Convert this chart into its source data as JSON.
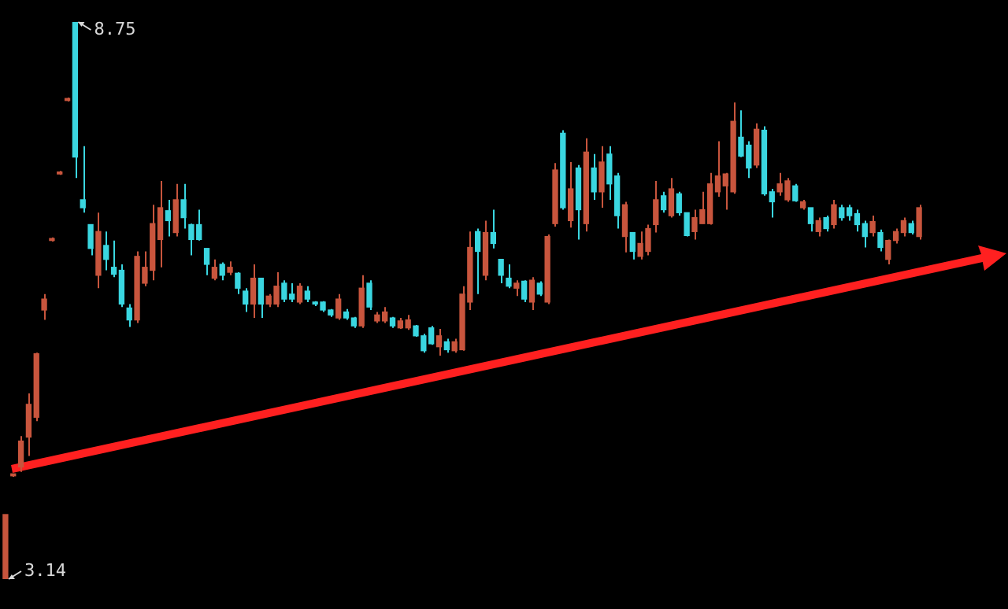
{
  "chart_data": {
    "type": "candlestick",
    "categories": [
      null,
      null,
      null,
      null,
      null,
      null,
      null,
      null,
      null,
      null,
      null,
      null,
      null,
      null,
      null,
      null,
      null,
      null,
      null,
      null,
      null,
      null,
      null,
      null,
      null,
      null,
      null,
      null,
      null,
      null,
      null,
      null,
      null,
      null,
      null,
      null,
      null,
      null,
      null,
      null,
      null,
      null,
      null,
      null,
      null,
      null,
      null,
      null,
      null,
      null,
      null,
      null,
      null,
      null,
      null,
      null,
      null,
      null,
      null,
      null,
      null,
      null,
      null,
      null,
      null,
      null,
      null,
      null,
      null,
      null,
      null,
      null,
      null,
      null,
      null,
      null,
      null,
      null,
      null,
      null,
      null,
      null,
      null,
      null,
      null,
      null,
      null,
      null,
      null,
      null,
      null,
      null,
      null,
      null,
      null,
      null,
      null,
      null,
      null,
      null,
      null,
      null,
      null,
      null,
      null,
      null,
      null,
      null,
      null,
      null,
      null,
      null,
      null,
      null,
      null,
      null,
      null,
      null,
      null
    ],
    "ohlc": [
      [
        3.14,
        3.79,
        3.14,
        3.79
      ],
      [
        4.18,
        4.2,
        4.17,
        4.2
      ],
      [
        4.27,
        4.58,
        4.22,
        4.53
      ],
      [
        4.57,
        5.01,
        4.38,
        4.9
      ],
      [
        4.77,
        5.42,
        4.73,
        5.41
      ],
      [
        5.85,
        6.01,
        5.75,
        5.96
      ],
      [
        6.55,
        6.58,
        6.54,
        6.57
      ],
      [
        7.22,
        7.25,
        7.21,
        7.24
      ],
      [
        7.96,
        7.99,
        7.95,
        7.98
      ],
      [
        8.75,
        8.75,
        7.18,
        7.39
      ],
      [
        6.96,
        7.5,
        6.83,
        6.88
      ],
      [
        6.71,
        6.71,
        6.4,
        6.47
      ],
      [
        6.2,
        6.83,
        6.07,
        6.64
      ],
      [
        6.5,
        6.64,
        6.25,
        6.36
      ],
      [
        6.28,
        6.55,
        6.18,
        6.21
      ],
      [
        6.25,
        6.31,
        5.88,
        5.91
      ],
      [
        5.87,
        5.91,
        5.68,
        5.75
      ],
      [
        5.75,
        6.44,
        5.72,
        6.39
      ],
      [
        6.12,
        6.44,
        6.09,
        6.28
      ],
      [
        6.25,
        6.91,
        6.15,
        6.72
      ],
      [
        6.56,
        7.15,
        6.28,
        6.88
      ],
      [
        6.85,
        6.96,
        6.59,
        6.75
      ],
      [
        6.63,
        7.12,
        6.59,
        6.96
      ],
      [
        6.96,
        7.12,
        6.67,
        6.78
      ],
      [
        6.71,
        6.72,
        6.4,
        6.56
      ],
      [
        6.71,
        6.86,
        6.55,
        6.56
      ],
      [
        6.47,
        6.47,
        6.2,
        6.31
      ],
      [
        6.17,
        6.36,
        6.15,
        6.28
      ],
      [
        6.31,
        6.33,
        6.15,
        6.2
      ],
      [
        6.23,
        6.34,
        6.2,
        6.28
      ],
      [
        6.22,
        6.23,
        6.01,
        6.07
      ],
      [
        6.04,
        6.07,
        5.83,
        5.91
      ],
      [
        5.91,
        6.31,
        5.77,
        6.17
      ],
      [
        6.17,
        6.17,
        5.77,
        5.91
      ],
      [
        5.91,
        6.01,
        5.88,
        5.99
      ],
      [
        5.91,
        6.23,
        5.88,
        6.09
      ],
      [
        6.12,
        6.15,
        5.93,
        5.96
      ],
      [
        6.01,
        6.12,
        5.93,
        5.96
      ],
      [
        5.93,
        6.12,
        5.91,
        6.09
      ],
      [
        6.04,
        6.09,
        5.93,
        5.96
      ],
      [
        5.93,
        5.94,
        5.89,
        5.91
      ],
      [
        5.93,
        5.94,
        5.83,
        5.85
      ],
      [
        5.85,
        5.86,
        5.78,
        5.8
      ],
      [
        5.77,
        6.01,
        5.75,
        5.96
      ],
      [
        5.83,
        5.86,
        5.75,
        5.77
      ],
      [
        5.77,
        5.78,
        5.67,
        5.69
      ],
      [
        5.69,
        6.2,
        5.67,
        6.07
      ],
      [
        6.12,
        6.15,
        5.85,
        5.88
      ],
      [
        5.74,
        5.83,
        5.72,
        5.8
      ],
      [
        5.74,
        5.88,
        5.72,
        5.83
      ],
      [
        5.77,
        5.78,
        5.67,
        5.69
      ],
      [
        5.67,
        5.77,
        5.66,
        5.74
      ],
      [
        5.67,
        5.8,
        5.65,
        5.75
      ],
      [
        5.69,
        5.7,
        5.58,
        5.59
      ],
      [
        5.59,
        5.61,
        5.42,
        5.44
      ],
      [
        5.67,
        5.69,
        5.5,
        5.51
      ],
      [
        5.48,
        5.66,
        5.39,
        5.59
      ],
      [
        5.53,
        5.56,
        5.42,
        5.45
      ],
      [
        5.44,
        5.56,
        5.42,
        5.53
      ],
      [
        5.45,
        6.09,
        5.44,
        6.01
      ],
      [
        5.93,
        6.64,
        5.85,
        6.48
      ],
      [
        6.64,
        6.67,
        6.01,
        6.44
      ],
      [
        6.2,
        6.75,
        6.15,
        6.63
      ],
      [
        6.63,
        6.86,
        6.47,
        6.52
      ],
      [
        6.36,
        6.36,
        6.12,
        6.2
      ],
      [
        6.17,
        6.31,
        6.07,
        6.09
      ],
      [
        6.07,
        6.15,
        5.99,
        6.12
      ],
      [
        6.14,
        6.15,
        5.93,
        5.96
      ],
      [
        5.93,
        6.18,
        5.85,
        6.15
      ],
      [
        6.12,
        6.14,
        5.99,
        6.01
      ],
      [
        5.93,
        6.61,
        5.91,
        6.59
      ],
      [
        6.72,
        7.33,
        6.69,
        7.26
      ],
      [
        7.63,
        7.66,
        6.86,
        6.88
      ],
      [
        6.75,
        7.34,
        6.68,
        7.07
      ],
      [
        7.28,
        7.31,
        6.56,
        6.86
      ],
      [
        6.72,
        7.58,
        6.64,
        7.44
      ],
      [
        7.28,
        7.42,
        6.96,
        7.04
      ],
      [
        7.04,
        7.5,
        6.88,
        7.34
      ],
      [
        7.42,
        7.5,
        6.96,
        7.12
      ],
      [
        7.2,
        7.23,
        6.67,
        6.8
      ],
      [
        6.59,
        6.94,
        6.43,
        6.91
      ],
      [
        6.63,
        6.63,
        6.36,
        6.44
      ],
      [
        6.39,
        6.64,
        6.36,
        6.52
      ],
      [
        6.44,
        6.71,
        6.4,
        6.67
      ],
      [
        6.71,
        7.15,
        6.63,
        6.96
      ],
      [
        7.0,
        7.04,
        6.83,
        6.86
      ],
      [
        6.8,
        7.18,
        6.78,
        7.07
      ],
      [
        7.02,
        7.04,
        6.8,
        6.83
      ],
      [
        6.83,
        6.83,
        6.59,
        6.6
      ],
      [
        6.64,
        6.86,
        6.56,
        6.78
      ],
      [
        6.72,
        7.04,
        6.72,
        6.86
      ],
      [
        6.72,
        7.23,
        6.71,
        7.12
      ],
      [
        7.04,
        7.55,
        6.99,
        7.2
      ],
      [
        7.1,
        7.23,
        6.86,
        7.22
      ],
      [
        7.04,
        7.94,
        7.02,
        7.75
      ],
      [
        7.59,
        7.86,
        7.39,
        7.4
      ],
      [
        7.51,
        7.55,
        7.18,
        7.28
      ],
      [
        7.31,
        7.73,
        7.28,
        7.67
      ],
      [
        7.66,
        7.7,
        7.0,
        7.02
      ],
      [
        7.04,
        7.07,
        6.78,
        6.94
      ],
      [
        7.04,
        7.23,
        7.0,
        7.12
      ],
      [
        6.96,
        7.18,
        6.94,
        7.15
      ],
      [
        7.1,
        7.12,
        6.94,
        6.95
      ],
      [
        6.88,
        6.96,
        6.86,
        6.94
      ],
      [
        6.88,
        6.88,
        6.64,
        6.72
      ],
      [
        6.64,
        6.78,
        6.59,
        6.75
      ],
      [
        6.78,
        6.8,
        6.64,
        6.67
      ],
      [
        6.71,
        6.96,
        6.67,
        6.91
      ],
      [
        6.88,
        6.91,
        6.75,
        6.78
      ],
      [
        6.88,
        6.91,
        6.75,
        6.8
      ],
      [
        6.82,
        6.86,
        6.64,
        6.71
      ],
      [
        6.72,
        6.75,
        6.48,
        6.59
      ],
      [
        6.63,
        6.8,
        6.59,
        6.74
      ],
      [
        6.63,
        6.66,
        6.44,
        6.48
      ],
      [
        6.36,
        6.56,
        6.31,
        6.55
      ],
      [
        6.55,
        6.67,
        6.52,
        6.64
      ],
      [
        6.63,
        6.78,
        6.59,
        6.75
      ],
      [
        6.72,
        6.75,
        6.61,
        6.63
      ],
      [
        6.59,
        6.91,
        6.56,
        6.88
      ]
    ],
    "colors": [
      "#c8553d",
      "#c8553d",
      "#c8553d",
      "#c8553d",
      "#c8553d",
      "#c8553d",
      "#c8553d",
      "#c8553d",
      "#c8553d",
      "#3ad6e0",
      "#3ad6e0",
      "#3ad6e0",
      "#c8553d",
      "#3ad6e0",
      "#3ad6e0",
      "#3ad6e0",
      "#3ad6e0",
      "#c8553d",
      "#c8553d",
      "#c8553d",
      "#c8553d",
      "#3ad6e0",
      "#c8553d",
      "#3ad6e0",
      "#3ad6e0",
      "#3ad6e0",
      "#3ad6e0",
      "#c8553d",
      "#3ad6e0",
      "#c8553d",
      "#3ad6e0",
      "#3ad6e0",
      "#c8553d",
      "#3ad6e0",
      "#c8553d",
      "#c8553d",
      "#3ad6e0",
      "#3ad6e0",
      "#c8553d",
      "#3ad6e0",
      "#3ad6e0",
      "#3ad6e0",
      "#3ad6e0",
      "#c8553d",
      "#3ad6e0",
      "#3ad6e0",
      "#c8553d",
      "#3ad6e0",
      "#c8553d",
      "#c8553d",
      "#3ad6e0",
      "#c8553d",
      "#c8553d",
      "#3ad6e0",
      "#3ad6e0",
      "#3ad6e0",
      "#c8553d",
      "#3ad6e0",
      "#c8553d",
      "#c8553d",
      "#c8553d",
      "#3ad6e0",
      "#c8553d",
      "#3ad6e0",
      "#3ad6e0",
      "#3ad6e0",
      "#c8553d",
      "#3ad6e0",
      "#c8553d",
      "#3ad6e0",
      "#c8553d",
      "#c8553d",
      "#3ad6e0",
      "#c8553d",
      "#3ad6e0",
      "#c8553d",
      "#3ad6e0",
      "#c8553d",
      "#3ad6e0",
      "#3ad6e0",
      "#c8553d",
      "#3ad6e0",
      "#c8553d",
      "#c8553d",
      "#c8553d",
      "#3ad6e0",
      "#c8553d",
      "#3ad6e0",
      "#3ad6e0",
      "#c8553d",
      "#c8553d",
      "#c8553d",
      "#c8553d",
      "#c8553d",
      "#c8553d",
      "#3ad6e0",
      "#3ad6e0",
      "#c8553d",
      "#3ad6e0",
      "#3ad6e0",
      "#c8553d",
      "#c8553d",
      "#3ad6e0",
      "#c8553d",
      "#3ad6e0",
      "#c8553d",
      "#3ad6e0",
      "#c8553d",
      "#3ad6e0",
      "#3ad6e0",
      "#3ad6e0",
      "#3ad6e0",
      "#c8553d",
      "#3ad6e0",
      "#c8553d",
      "#c8553d",
      "#c8553d",
      "#3ad6e0",
      "#c8553d"
    ],
    "annotations": [
      "8.75",
      "3.14"
    ]
  }
}
